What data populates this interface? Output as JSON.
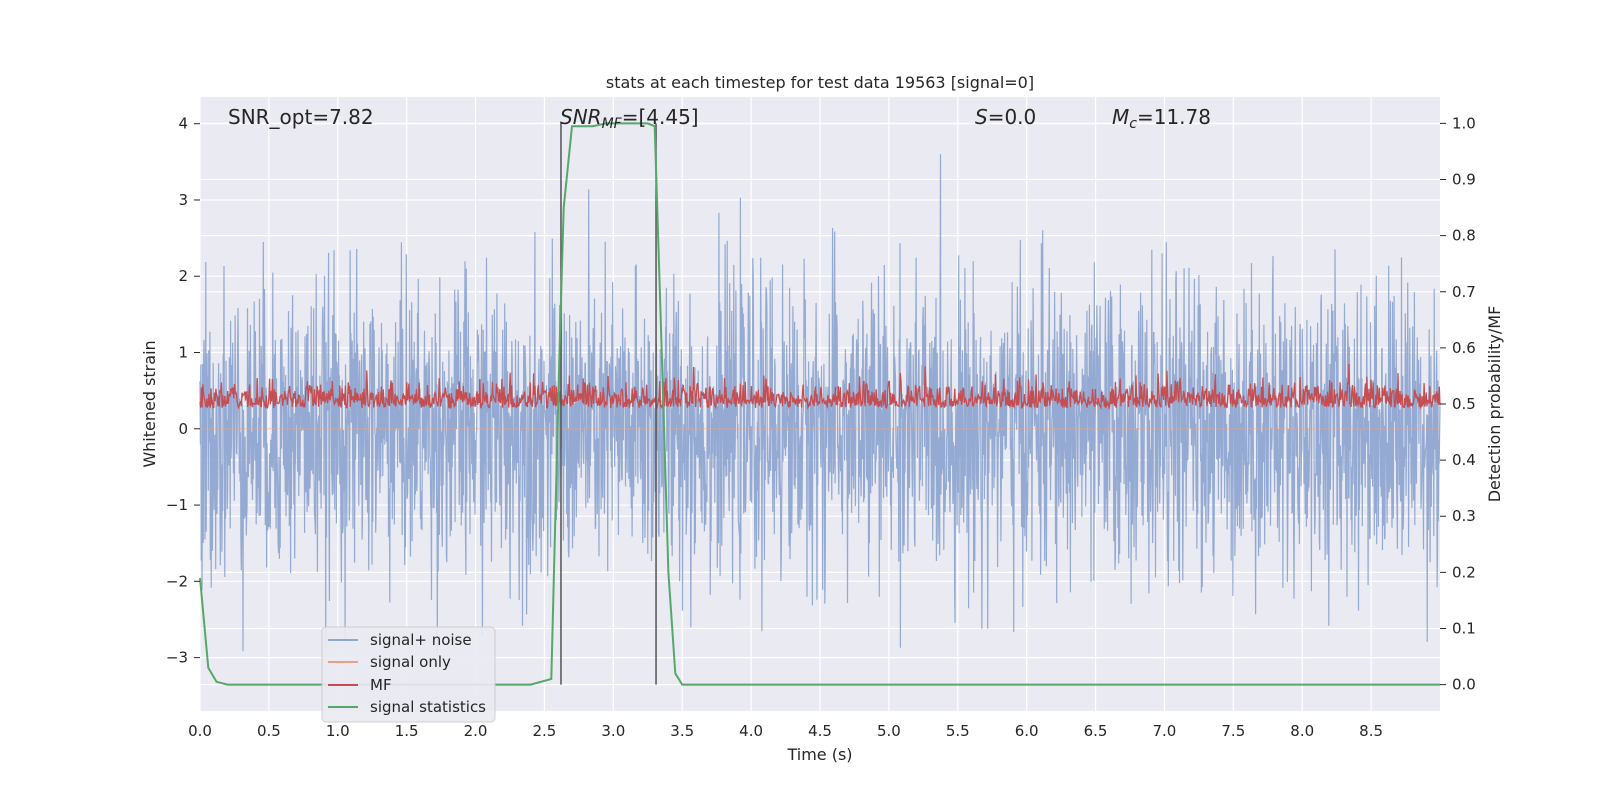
{
  "chart_data": {
    "type": "line",
    "title": "stats at each timestep for test data 19563 [signal=0]",
    "xlabel": "Time (s)",
    "ylabel": "Whitened strain",
    "ylabel_right": "Detection probability/MF",
    "xlim": [
      0.0,
      9.0
    ],
    "ylim": [
      -3.7,
      4.35
    ],
    "ylim_right": [
      -0.047,
      1.047
    ],
    "x_ticks": [
      "0.0",
      "0.5",
      "1.0",
      "1.5",
      "2.0",
      "2.5",
      "3.0",
      "3.5",
      "4.0",
      "4.5",
      "5.0",
      "5.5",
      "6.0",
      "6.5",
      "7.0",
      "7.5",
      "8.0",
      "8.5"
    ],
    "y_ticks": [
      "4",
      "3",
      "2",
      "1",
      "0",
      "−1",
      "−2",
      "−3"
    ],
    "y_right_ticks": [
      "1.0",
      "0.9",
      "0.8",
      "0.7",
      "0.6",
      "0.5",
      "0.4",
      "0.3",
      "0.2",
      "0.1",
      "0.0"
    ],
    "grid": true,
    "annotations": {
      "snr_opt": "SNR_opt=7.82",
      "snr_mf": "SNRMF=[4.45]",
      "s": "S=0.0",
      "mc": "Mc=11.78"
    },
    "vertical_markers": [
      2.62,
      3.31
    ],
    "legend": {
      "placement": "lower-left",
      "entries": [
        "signal+ noise",
        "signal only",
        "MF",
        "signal statistics"
      ]
    },
    "series": [
      {
        "name": "signal+ noise",
        "axis": "left",
        "color": "#8fa6d0",
        "description": "dense noise, roughly within ±2.5, spikes to ±3.6"
      },
      {
        "name": "signal only",
        "axis": "left",
        "color": "#e8a184",
        "description": "flat near zero"
      },
      {
        "name": "MF",
        "axis": "right",
        "color": "#c44e52",
        "description": "fluctuating around 0.5, range ~0.47–0.58"
      },
      {
        "name": "signal statistics",
        "axis": "right",
        "color": "#55a868",
        "x": [
          0.0,
          0.06,
          0.12,
          0.2,
          0.5,
          1.0,
          1.5,
          2.0,
          2.4,
          2.55,
          2.61,
          2.64,
          2.7,
          2.75,
          2.85,
          2.95,
          3.05,
          3.15,
          3.25,
          3.3,
          3.35,
          3.4,
          3.45,
          3.5,
          4.0,
          5.0,
          6.0,
          7.0,
          8.0,
          9.0
        ],
        "values": [
          0.19,
          0.03,
          0.005,
          0.0,
          0.0,
          0.0,
          0.0,
          0.0,
          0.0,
          0.01,
          0.6,
          0.85,
          0.995,
          0.995,
          0.995,
          1.0,
          1.0,
          1.0,
          1.0,
          0.995,
          0.6,
          0.2,
          0.02,
          0.0,
          0.0,
          0.0,
          0.0,
          0.0,
          0.0,
          0.0
        ]
      }
    ]
  }
}
